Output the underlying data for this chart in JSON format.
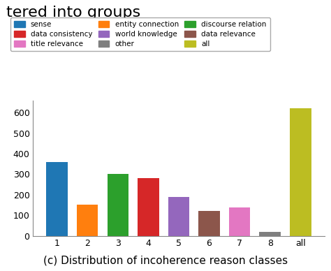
{
  "categories": [
    "1",
    "2",
    "3",
    "4",
    "5",
    "6",
    "7",
    "8",
    "all"
  ],
  "values": [
    360,
    152,
    302,
    280,
    190,
    122,
    137,
    18,
    622
  ],
  "bar_colors": [
    "#1f77b4",
    "#ff7f0e",
    "#2ca02c",
    "#d62728",
    "#9467bd",
    "#8c564b",
    "#e377c2",
    "#7f7f7f",
    "#bcbd22"
  ],
  "legend_labels": [
    "sense",
    "entity connection",
    "discourse relation",
    "data consistency",
    "world knowledge",
    "data relevance",
    "title relevance",
    "other",
    "all"
  ],
  "ylim": [
    0,
    660
  ],
  "yticks": [
    0,
    100,
    200,
    300,
    400,
    500,
    600
  ],
  "caption": "(c) Distribution of incoherence reason classes",
  "caption_fontsize": 11,
  "title_partial": "tered into groups",
  "title_fontsize": 16,
  "figsize": [
    4.74,
    3.88
  ],
  "dpi": 100
}
